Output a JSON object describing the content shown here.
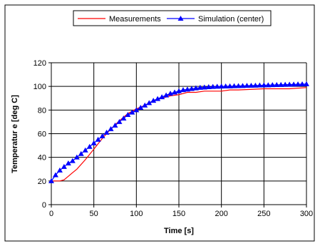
{
  "chart_data": {
    "type": "line",
    "xlabel": "Time [s]",
    "ylabel": "Temperatur e [deg C]",
    "xlim": [
      0,
      300
    ],
    "ylim": [
      0,
      120
    ],
    "xticks": [
      "0",
      "50",
      "100",
      "150",
      "200",
      "250",
      "300"
    ],
    "yticks": [
      "0",
      "20",
      "40",
      "60",
      "80",
      "100",
      "120"
    ],
    "grid": true,
    "legend_position": "top-center",
    "series": [
      {
        "name": "Measurements",
        "color": "#ff0000",
        "marker": "none",
        "x": [
          0,
          10,
          15,
          20,
          25,
          30,
          40,
          50,
          60,
          70,
          80,
          90,
          100,
          110,
          120,
          130,
          140,
          150,
          160,
          170,
          180,
          190,
          200,
          210,
          220,
          250,
          280,
          300
        ],
        "y": [
          20,
          20,
          21,
          24,
          27,
          30,
          38,
          47,
          56,
          64,
          71,
          77,
          81,
          84,
          88,
          90,
          92,
          93,
          95,
          95,
          96,
          96,
          96,
          97,
          97,
          98,
          98,
          99
        ]
      },
      {
        "name": "Simulation (center)",
        "color": "#0000ff",
        "marker": "triangle",
        "x": [
          0,
          5,
          10,
          15,
          20,
          25,
          30,
          35,
          40,
          45,
          50,
          55,
          60,
          65,
          70,
          75,
          80,
          85,
          90,
          95,
          100,
          105,
          110,
          115,
          120,
          125,
          130,
          135,
          140,
          145,
          150,
          155,
          160,
          165,
          170,
          175,
          180,
          185,
          190,
          195,
          200,
          205,
          210,
          215,
          220,
          225,
          230,
          235,
          240,
          245,
          250,
          255,
          260,
          265,
          270,
          275,
          280,
          285,
          290,
          295,
          300
        ],
        "y": [
          20,
          25,
          29,
          32,
          35,
          37,
          40,
          43,
          46,
          49,
          52,
          55,
          58,
          61,
          64,
          67,
          70,
          73,
          76,
          78,
          80,
          82,
          84,
          86,
          88,
          89.5,
          91,
          92.5,
          94,
          95,
          96,
          97,
          97.5,
          98,
          98.5,
          99,
          99.2,
          99.5,
          99.7,
          99.9,
          100,
          100.1,
          100.2,
          100.3,
          100.4,
          100.5,
          100.6,
          100.7,
          100.8,
          100.9,
          101,
          101.1,
          101.2,
          101.3,
          101.4,
          101.5,
          101.6,
          101.7,
          101.8,
          101.9,
          102
        ]
      }
    ]
  }
}
